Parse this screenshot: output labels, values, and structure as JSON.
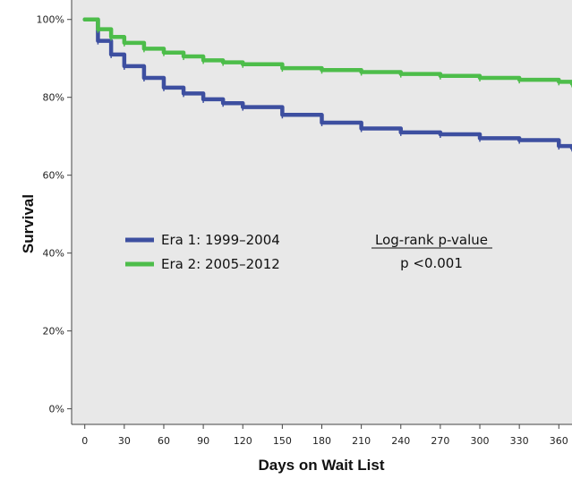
{
  "chart_data": {
    "type": "line",
    "xlabel": "Days on Wait List",
    "ylabel": "Survival",
    "xlim": [
      -10,
      370
    ],
    "ylim": [
      -4,
      105
    ],
    "x_ticks": [
      0,
      30,
      60,
      90,
      120,
      150,
      180,
      210,
      240,
      270,
      300,
      330,
      360
    ],
    "y_ticks": [
      {
        "value": 0,
        "label": "0%"
      },
      {
        "value": 20,
        "label": "20%"
      },
      {
        "value": 40,
        "label": "40%"
      },
      {
        "value": 60,
        "label": "60%"
      },
      {
        "value": 80,
        "label": "80%"
      },
      {
        "value": 100,
        "label": "100%"
      }
    ],
    "grid": false,
    "background": "#e8e8e8",
    "legend_position": "center-left",
    "series": [
      {
        "name": "Era 1: 1999–2004",
        "color": "#3d4fa0",
        "x": [
          0,
          10,
          20,
          30,
          45,
          60,
          75,
          90,
          105,
          120,
          150,
          180,
          210,
          240,
          270,
          300,
          330,
          360,
          370
        ],
        "y": [
          100,
          94.5,
          91,
          88,
          85,
          82.5,
          81,
          79.5,
          78.5,
          77.5,
          75.5,
          73.5,
          72,
          71,
          70.5,
          69.5,
          69,
          67.5,
          67
        ]
      },
      {
        "name": "Era 2: 2005–2012",
        "color": "#4dbd4a",
        "x": [
          0,
          10,
          20,
          30,
          45,
          60,
          75,
          90,
          105,
          120,
          150,
          180,
          210,
          240,
          270,
          300,
          330,
          360,
          370
        ],
        "y": [
          100,
          97.5,
          95.5,
          94,
          92.5,
          91.5,
          90.5,
          89.5,
          89,
          88.5,
          87.5,
          87,
          86.5,
          86,
          85.5,
          85,
          84.5,
          84,
          83.5
        ]
      }
    ],
    "annotation": {
      "title": "Log-rank p-value",
      "value": "p <0.001"
    }
  }
}
